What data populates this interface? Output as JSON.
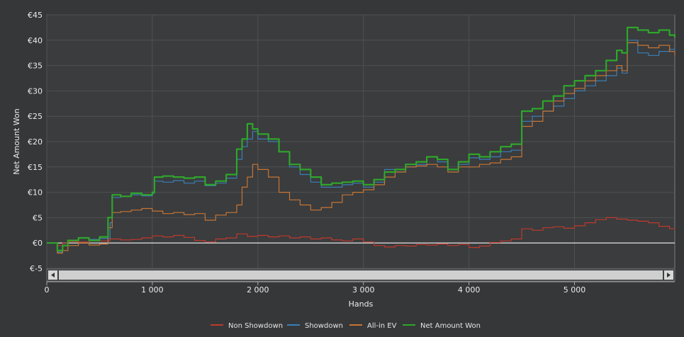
{
  "chart_data": {
    "type": "line",
    "title": "",
    "xlabel": "Hands",
    "ylabel": "Net Amount Won",
    "xlim": [
      0,
      5950
    ],
    "ylim": [
      -5,
      45
    ],
    "x_ticks": [
      {
        "value": 0,
        "label": "0"
      },
      {
        "value": 1000,
        "label": "1 000"
      },
      {
        "value": 2000,
        "label": "2 000"
      },
      {
        "value": 3000,
        "label": "3 000"
      },
      {
        "value": 4000,
        "label": "4 000"
      },
      {
        "value": 5000,
        "label": "5 000"
      }
    ],
    "y_ticks": [
      {
        "value": -5,
        "label": "€-5"
      },
      {
        "value": 0,
        "label": "€0"
      },
      {
        "value": 5,
        "label": "€5"
      },
      {
        "value": 10,
        "label": "€10"
      },
      {
        "value": 15,
        "label": "€15"
      },
      {
        "value": 20,
        "label": "€20"
      },
      {
        "value": 25,
        "label": "€25"
      },
      {
        "value": 30,
        "label": "€30"
      },
      {
        "value": 35,
        "label": "€35"
      },
      {
        "value": 40,
        "label": "€40"
      },
      {
        "value": 45,
        "label": "€45"
      }
    ],
    "grid": true,
    "legend_position": "bottom-center",
    "series": [
      {
        "name": "Non Showdown",
        "color": "#c0392b",
        "x": [
          0,
          100,
          150,
          200,
          300,
          400,
          500,
          600,
          700,
          800,
          900,
          1000,
          1100,
          1200,
          1300,
          1400,
          1500,
          1600,
          1700,
          1800,
          1900,
          2000,
          2100,
          2200,
          2300,
          2400,
          2500,
          2600,
          2700,
          2800,
          2900,
          3000,
          3100,
          3200,
          3300,
          3400,
          3500,
          3600,
          3700,
          3800,
          3900,
          4000,
          4100,
          4200,
          4300,
          4400,
          4500,
          4600,
          4700,
          4800,
          4900,
          5000,
          5100,
          5200,
          5300,
          5400,
          5500,
          5600,
          5700,
          5800,
          5900,
          5950
        ],
        "values": [
          0,
          -0.5,
          0,
          0.3,
          0.2,
          0.5,
          0.4,
          0.8,
          0.6,
          0.7,
          1.0,
          1.4,
          1.2,
          1.5,
          1.1,
          0.5,
          0.2,
          0.8,
          1.0,
          1.8,
          1.3,
          1.5,
          1.2,
          1.4,
          1.0,
          1.2,
          0.8,
          1.0,
          0.6,
          0.4,
          0.8,
          0.2,
          -0.5,
          -0.8,
          -0.5,
          -0.6,
          -0.3,
          -0.4,
          -0.2,
          -0.5,
          -0.3,
          -0.9,
          -0.6,
          0.1,
          0.4,
          0.8,
          2.8,
          2.5,
          3.0,
          3.2,
          2.9,
          3.4,
          4.0,
          4.6,
          5.0,
          4.7,
          4.5,
          4.3,
          4.0,
          3.3,
          2.8,
          2.6
        ]
      },
      {
        "name": "Showdown",
        "color": "#3a7fb7",
        "x": [
          0,
          100,
          150,
          200,
          300,
          400,
          500,
          600,
          620,
          700,
          800,
          900,
          1000,
          1020,
          1100,
          1200,
          1300,
          1400,
          1500,
          1600,
          1700,
          1800,
          1850,
          1900,
          1950,
          2000,
          2100,
          2200,
          2300,
          2400,
          2500,
          2600,
          2700,
          2800,
          2900,
          3000,
          3100,
          3200,
          3300,
          3400,
          3500,
          3600,
          3700,
          3800,
          3900,
          4000,
          4100,
          4200,
          4300,
          4400,
          4500,
          4600,
          4700,
          4800,
          4900,
          5000,
          5100,
          5200,
          5300,
          5400,
          5450,
          5500,
          5600,
          5700,
          5800,
          5900,
          5950
        ],
        "values": [
          0,
          -1.8,
          -0.5,
          0.5,
          1.0,
          0.7,
          0.9,
          4.0,
          9.0,
          9.2,
          9.5,
          9.3,
          9.8,
          12.2,
          12.0,
          12.3,
          11.8,
          12.2,
          11.3,
          11.8,
          12.8,
          16.5,
          19.0,
          20.5,
          22.0,
          20.5,
          20.0,
          18.0,
          15.0,
          13.5,
          12.0,
          11.0,
          11.0,
          11.5,
          11.8,
          11.0,
          12.0,
          14.5,
          14.0,
          15.0,
          15.5,
          17.0,
          16.0,
          14.5,
          15.5,
          16.8,
          16.5,
          17.0,
          18.0,
          18.3,
          24.0,
          25.0,
          26.0,
          27.0,
          28.5,
          30.0,
          31.0,
          32.0,
          33.0,
          34.5,
          33.5,
          40.0,
          37.5,
          37.0,
          37.8,
          38.2,
          37.8
        ]
      },
      {
        "name": "All-in EV",
        "color": "#c87533",
        "x": [
          0,
          100,
          150,
          200,
          300,
          400,
          500,
          580,
          620,
          700,
          800,
          900,
          1000,
          1100,
          1200,
          1300,
          1400,
          1500,
          1600,
          1700,
          1800,
          1850,
          1900,
          1950,
          2000,
          2100,
          2200,
          2300,
          2400,
          2500,
          2600,
          2700,
          2800,
          2900,
          3000,
          3100,
          3200,
          3300,
          3400,
          3500,
          3600,
          3700,
          3800,
          3900,
          4000,
          4100,
          4200,
          4300,
          4400,
          4500,
          4600,
          4700,
          4800,
          4900,
          5000,
          5100,
          5200,
          5300,
          5400,
          5450,
          5500,
          5600,
          5700,
          5800,
          5900,
          5950
        ],
        "values": [
          0,
          -2.0,
          -1.5,
          -0.5,
          0.0,
          -0.4,
          -0.2,
          3.0,
          6.0,
          6.2,
          6.5,
          6.8,
          6.3,
          5.8,
          6.0,
          5.6,
          5.8,
          4.5,
          5.5,
          6.0,
          7.5,
          11.0,
          13.0,
          15.5,
          14.5,
          13.0,
          10.0,
          8.5,
          7.5,
          6.5,
          7.0,
          8.0,
          9.5,
          10.0,
          10.5,
          11.5,
          13.0,
          14.0,
          15.0,
          15.2,
          15.5,
          15.0,
          14.0,
          15.0,
          15.0,
          15.5,
          15.8,
          16.5,
          17.0,
          23.0,
          24.0,
          26.0,
          28.0,
          29.5,
          30.5,
          32.0,
          33.0,
          34.0,
          35.0,
          34.0,
          39.5,
          39.0,
          38.5,
          39.0,
          37.8,
          37.0
        ]
      },
      {
        "name": "Net Amount Won",
        "color": "#2fa62a",
        "x": [
          0,
          100,
          150,
          200,
          300,
          400,
          500,
          580,
          620,
          700,
          800,
          900,
          1000,
          1020,
          1100,
          1200,
          1300,
          1400,
          1500,
          1600,
          1700,
          1800,
          1850,
          1900,
          1950,
          2000,
          2100,
          2200,
          2300,
          2400,
          2500,
          2600,
          2700,
          2800,
          2900,
          3000,
          3100,
          3200,
          3300,
          3400,
          3500,
          3600,
          3700,
          3800,
          3900,
          4000,
          4100,
          4200,
          4300,
          4400,
          4500,
          4600,
          4700,
          4800,
          4900,
          5000,
          5100,
          5200,
          5300,
          5400,
          5450,
          5500,
          5600,
          5700,
          5800,
          5900,
          5950
        ],
        "values": [
          0,
          -1.5,
          -0.5,
          0.5,
          1.0,
          0.5,
          1.2,
          5.0,
          9.5,
          9.2,
          9.8,
          9.5,
          10.0,
          13.0,
          13.2,
          13.0,
          12.8,
          13.0,
          11.5,
          12.2,
          13.5,
          18.5,
          20.5,
          23.5,
          22.5,
          21.5,
          20.5,
          18.0,
          15.5,
          14.5,
          13.0,
          11.5,
          11.8,
          12.0,
          12.2,
          11.5,
          12.5,
          14.0,
          14.5,
          15.5,
          16.0,
          17.0,
          16.5,
          14.5,
          16.0,
          17.5,
          17.0,
          18.0,
          19.0,
          19.5,
          26.0,
          26.5,
          28.0,
          29.0,
          31.0,
          32.0,
          33.0,
          34.0,
          36.0,
          38.0,
          37.5,
          42.5,
          42.0,
          41.5,
          42.0,
          41.0,
          40.5
        ]
      }
    ]
  }
}
